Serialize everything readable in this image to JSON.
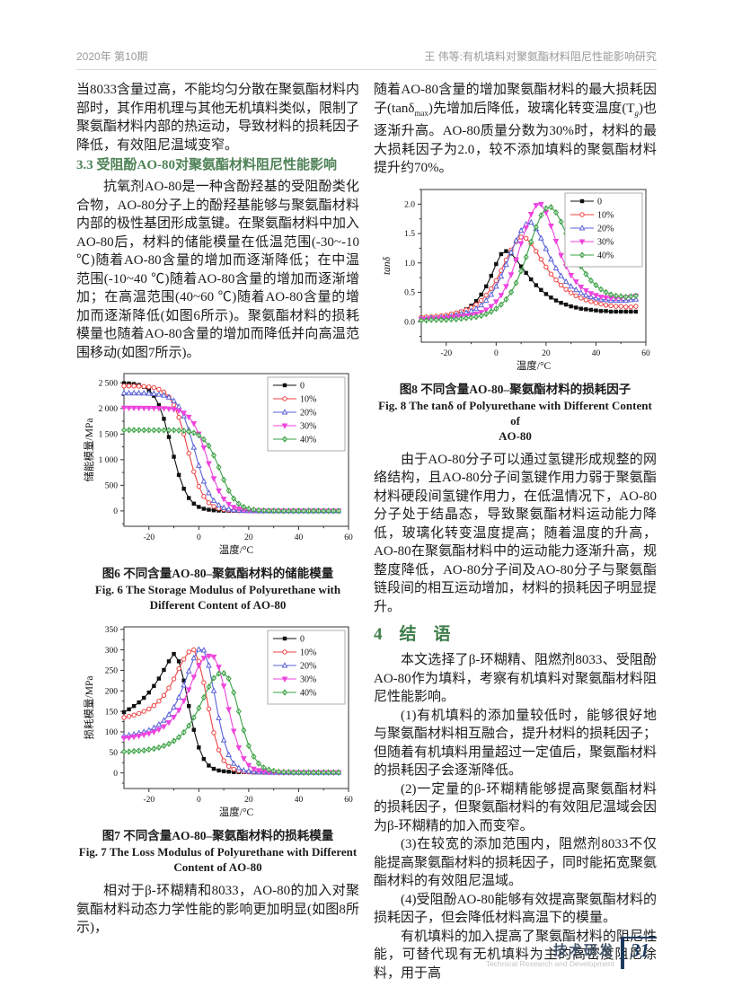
{
  "page": {
    "header_left": "2020年 第10期",
    "header_right": "王    伟等:有机填料对聚氨酯材料阻尼性能影响研究",
    "footer": {
      "cn": "技术研发",
      "en": "Technical Research and Development",
      "page_number": "31"
    }
  },
  "left_column": {
    "para1": "当8033含量过高，不能均匀分散在聚氨酯材料内部时，其作用机理与其他无机填料类似，限制了聚氨酯材料内部的热运动，导致材料的损耗因子降低，有效阻尼温域变窄。",
    "heading_33": "3.3  受阻酚AO-80对聚氨酯材料阻尼性能影响",
    "para2": "抗氧剂AO-80是一种含酚羟基的受阻酚类化合物，AO-80分子上的酚羟基能够与聚氨酯材料内部的极性基团形成氢键。在聚氨酯材料中加入AO-80后，材料的储能模量在低温范围(-30~-10 ℃)随着AO-80含量的增加而逐渐降低；在中温范围(-10~40 ℃)随着AO-80含量的增加而逐渐增加；在高温范围(40~60 ℃)随着AO-80含量的增加而逐渐降低(如图6所示)。聚氨酯材料的损耗模量也随着AO-80含量的增加而降低并向高温范围移动(如图7所示)。",
    "para3": "相对于β-环糊精和8033，AO-80的加入对聚氨酯材料动态力学性能的影响更加明显(如图8所示)，"
  },
  "right_column": {
    "para1": {
      "seg0": "随着AO-80含量的增加聚氨酯材料的最大损耗因子(tanδ",
      "seg1": "max",
      "seg2": ")先增加后降低，玻璃化转变温度(T",
      "seg3": "g",
      "seg4": ")也逐渐升高。AO-80质量分数为30%时，材料的最大损耗因子为2.0，较不添加填料的聚氨酯材料提升约70%。"
    },
    "para2": "由于AO-80分子可以通过氢键形成规整的网络结构，且AO-80分子间氢键作用力弱于聚氨酯材料硬段间氢键作用力，在低温情况下，AO-80分子处于结晶态，导致聚氨酯材料运动能力降低，玻璃化转变温度提高；随着温度的升高，AO-80在聚氨酯材料中的运动能力逐渐升高，规整度降低，AO-80分子间及AO-80分子与聚氨酯链段间的相互运动增加，材料的损耗因子明显提升。",
    "heading_4": "4　结　语",
    "conclusion": {
      "intro": "本文选择了β-环糊精、阻燃剂8033、受阻酚AO-80作为填料，考察有机填料对聚氨酯材料阻尼性能影响。",
      "c1": "(1)有机填料的添加量较低时，能够很好地与聚氨酯材料相互融合，提升材料的损耗因子；但随着有机填料用量超过一定值后，聚氨酯材料的损耗因子会逐渐降低。",
      "c2": "(2)一定量的β-环糊精能够提高聚氨酯材料的损耗因子，但聚氨酯材料的有效阻尼温域会因为β-环糊精的加入而变窄。",
      "c3": "(3)在较宽的添加范围内，阻燃剂8033不仅能提高聚氨酯材料的损耗因子，同时能拓宽聚氨酯材料的有效阻尼温域。",
      "c4": "(4)受阻酚AO-80能够有效提高聚氨酯材料的损耗因子，但会降低材料高温下的模量。",
      "final": "有机填料的加入提高了聚氨酯材料的阻尼性能，可替代现有无机填料为主的高密度阻尼涂料，用于高"
    }
  },
  "figures": {
    "fig6": {
      "caption_cn": "图6  不同含量AO-80–聚氨酯材料的储能模量",
      "caption_en_1": "Fig. 6  The Storage Modulus of Polyurethane with",
      "caption_en_2": "Different Content of AO-80"
    },
    "fig7": {
      "caption_cn": "图7  不同含量AO-80–聚氨酯材料的损耗模量",
      "caption_en_1": "Fig. 7  The Loss Modulus of Polyurethane with Different",
      "caption_en_2": "Content of AO-80"
    },
    "fig8": {
      "caption_cn": "图8  不同含量AO-80–聚氨酯材料的损耗因子",
      "caption_en_1": "Fig. 8  The tanδ of Polyurethane with Different Content of",
      "caption_en_2": "AO-80"
    }
  },
  "chart_data": [
    {
      "type": "line",
      "title": "图6 不同含量AO-80–聚氨酯材料的储能模量",
      "xlabel": "温度/°C",
      "ylabel": "储能模量/MPa",
      "ylabel_italic": false,
      "xlim": [
        -30,
        60
      ],
      "ylim": [
        -300,
        2680
      ],
      "xticks": [
        -20,
        0,
        20,
        40,
        60
      ],
      "xtick_labels": [
        "-20",
        "0",
        "20",
        "40",
        "60"
      ],
      "yticks": [
        0,
        500,
        1000,
        1500,
        2000,
        2500
      ],
      "ytick_labels": [
        "0",
        "500",
        "1 000",
        "1 500",
        "2 000",
        "2 500"
      ],
      "legend_position": "top-right",
      "x": [
        -30,
        -28,
        -26,
        -24,
        -22,
        -20,
        -18,
        -16,
        -14,
        -12,
        -10,
        -8,
        -6,
        -4,
        -2,
        0,
        2,
        4,
        6,
        8,
        10,
        12,
        14,
        16,
        18,
        20,
        22,
        24,
        26,
        28,
        30,
        32,
        34,
        36,
        38,
        40,
        42,
        44,
        46,
        48,
        50,
        52,
        54,
        56
      ],
      "series": [
        {
          "name": "0",
          "color": "#111111",
          "marker": "square",
          "values": [
            2493,
            2488,
            2477,
            2458,
            2422,
            2358,
            2248,
            2066,
            1797,
            1443,
            1057,
            703,
            433,
            252,
            142,
            78,
            42,
            23,
            12,
            7,
            4,
            2,
            1,
            1,
            1,
            1,
            0,
            0,
            0,
            0,
            0,
            0,
            0,
            0,
            0,
            0,
            0,
            0,
            0,
            0,
            0,
            0,
            0,
            0
          ]
        },
        {
          "name": "10%",
          "color": "#ee4040",
          "marker": "circle",
          "values": [
            2439,
            2438,
            2437,
            2434,
            2430,
            2421,
            2405,
            2374,
            2321,
            2226,
            2070,
            1826,
            1501,
            1124,
            767,
            478,
            283,
            159,
            88,
            48,
            26,
            14,
            8,
            4,
            2,
            1,
            1,
            0,
            0,
            0,
            0,
            0,
            0,
            0,
            0,
            0,
            0,
            0,
            0,
            0,
            0,
            0,
            0,
            0
          ]
        },
        {
          "name": "20%",
          "color": "#5b62d8",
          "marker": "triangle",
          "values": [
            2300,
            2299,
            2299,
            2298,
            2296,
            2293,
            2287,
            2275,
            2255,
            2217,
            2150,
            2034,
            1849,
            1578,
            1240,
            885,
            577,
            350,
            202,
            112,
            61,
            33,
            18,
            10,
            5,
            3,
            2,
            1,
            0,
            0,
            0,
            0,
            0,
            0,
            0,
            0,
            0,
            0,
            0,
            0,
            0,
            0,
            0,
            0
          ]
        },
        {
          "name": "30%",
          "color": "#ee44dd",
          "marker": "triangle-down",
          "values": [
            2010,
            2010,
            2009,
            2009,
            2008,
            2007,
            2006,
            2004,
            2001,
            1994,
            1981,
            1956,
            1912,
            1833,
            1705,
            1504,
            1237,
            926,
            632,
            394,
            233,
            131,
            73,
            40,
            22,
            12,
            6,
            3,
            2,
            1,
            0,
            0,
            0,
            0,
            0,
            0,
            0,
            0,
            0,
            0,
            0,
            0,
            0,
            0
          ]
        },
        {
          "name": "40%",
          "color": "#3aa044",
          "marker": "diamond",
          "values": [
            1578,
            1578,
            1578,
            1577,
            1577,
            1576,
            1576,
            1575,
            1575,
            1575,
            1575,
            1571,
            1563,
            1549,
            1523,
            1477,
            1397,
            1270,
            1084,
            852,
            608,
            396,
            240,
            139,
            77,
            42,
            23,
            12,
            7,
            4,
            2,
            1,
            0,
            0,
            0,
            0,
            0,
            0,
            0,
            0,
            0,
            0,
            0,
            0
          ]
        }
      ]
    },
    {
      "type": "line",
      "title": "图7 不同含量AO-80–聚氨酯材料的损耗模量",
      "xlabel": "温度/°C",
      "ylabel": "损耗模量/MPa",
      "ylabel_italic": false,
      "xlim": [
        -30,
        60
      ],
      "ylim": [
        -38,
        356
      ],
      "xticks": [
        -20,
        0,
        20,
        40,
        60
      ],
      "xtick_labels": [
        "-20",
        "0",
        "20",
        "40",
        "60"
      ],
      "yticks": [
        0,
        50,
        100,
        150,
        200,
        250,
        300,
        350
      ],
      "ytick_labels": [
        "0",
        "50",
        "100",
        "150",
        "200",
        "250",
        "300",
        "350"
      ],
      "legend_position": "top-right",
      "x": [
        -30,
        -28,
        -26,
        -24,
        -22,
        -20,
        -18,
        -16,
        -14,
        -12,
        -10,
        -8,
        -6,
        -4,
        -2,
        0,
        2,
        4,
        6,
        8,
        10,
        12,
        14,
        16,
        18,
        20,
        22,
        24,
        26,
        28,
        30,
        32,
        34,
        36,
        38,
        40,
        42,
        44,
        46,
        48,
        50,
        52,
        54,
        56
      ],
      "series": [
        {
          "name": "0",
          "color": "#111111",
          "marker": "square",
          "values": [
            148,
            155,
            163,
            172,
            183,
            196,
            212,
            230,
            251,
            272,
            290,
            272,
            225,
            163,
            105,
            62,
            34,
            18,
            10,
            6,
            4,
            3,
            2,
            2,
            2,
            2,
            1,
            1,
            1,
            1,
            1,
            1,
            1,
            1,
            1,
            1,
            1,
            1,
            1,
            1,
            1,
            1,
            1,
            1
          ]
        },
        {
          "name": "10%",
          "color": "#ee4040",
          "marker": "circle",
          "values": [
            135,
            138,
            141,
            145,
            150,
            156,
            164,
            175,
            189,
            207,
            229,
            254,
            277,
            295,
            300,
            272,
            220,
            156,
            98,
            56,
            30,
            16,
            9,
            5,
            3,
            2,
            2,
            2,
            1,
            1,
            1,
            1,
            1,
            1,
            1,
            1,
            1,
            1,
            1,
            1,
            1,
            1,
            1,
            1
          ]
        },
        {
          "name": "20%",
          "color": "#5b62d8",
          "marker": "triangle",
          "values": [
            90,
            92,
            94,
            97,
            100,
            104,
            110,
            118,
            128,
            142,
            160,
            184,
            214,
            248,
            280,
            301,
            299,
            262,
            200,
            134,
            80,
            44,
            23,
            12,
            6,
            4,
            3,
            2,
            2,
            1,
            1,
            1,
            1,
            1,
            1,
            1,
            1,
            1,
            1,
            1,
            1,
            1,
            1,
            1
          ]
        },
        {
          "name": "30%",
          "color": "#ee44dd",
          "marker": "triangle-down",
          "values": [
            85,
            86,
            88,
            90,
            93,
            96,
            100,
            106,
            113,
            123,
            136,
            153,
            176,
            203,
            234,
            262,
            280,
            285,
            283,
            258,
            212,
            155,
            102,
            62,
            35,
            19,
            10,
            6,
            4,
            2,
            2,
            1,
            1,
            1,
            1,
            1,
            1,
            1,
            1,
            1,
            1,
            1,
            1,
            1
          ]
        },
        {
          "name": "40%",
          "color": "#3aa044",
          "marker": "diamond",
          "values": [
            52,
            52,
            53,
            54,
            55,
            57,
            59,
            62,
            66,
            71,
            78,
            87,
            99,
            115,
            135,
            158,
            184,
            210,
            231,
            242,
            243,
            230,
            196,
            150,
            104,
            66,
            40,
            23,
            13,
            8,
            5,
            3,
            2,
            2,
            1,
            1,
            1,
            1,
            1,
            1,
            1,
            1,
            1,
            1
          ]
        }
      ]
    },
    {
      "type": "line",
      "title": "图8 不同含量AO-80–聚氨酯材料的损耗因子",
      "xlabel": "温度/°C",
      "ylabel": "tanδ",
      "ylabel_italic": true,
      "xlim": [
        -30,
        60
      ],
      "ylim": [
        -0.35,
        2.25
      ],
      "xticks": [
        -20,
        0,
        20,
        40,
        60
      ],
      "xtick_labels": [
        "-20",
        "0",
        "20",
        "40",
        "60"
      ],
      "yticks": [
        0,
        0.5,
        1,
        1.5,
        2
      ],
      "ytick_labels": [
        "0.0",
        "0.5",
        "1.0",
        "1.5",
        "2.0"
      ],
      "legend_position": "top-right",
      "x": [
        -30,
        -28,
        -26,
        -24,
        -22,
        -20,
        -18,
        -16,
        -14,
        -12,
        -10,
        -8,
        -6,
        -4,
        -2,
        0,
        2,
        4,
        6,
        8,
        10,
        12,
        14,
        16,
        18,
        20,
        22,
        24,
        26,
        28,
        30,
        32,
        34,
        36,
        38,
        40,
        42,
        44,
        46,
        48,
        50,
        52,
        54,
        56
      ],
      "series": [
        {
          "name": "0",
          "color": "#111111",
          "marker": "square",
          "values": [
            0.07,
            0.07,
            0.08,
            0.08,
            0.09,
            0.1,
            0.12,
            0.14,
            0.17,
            0.21,
            0.27,
            0.35,
            0.46,
            0.6,
            0.78,
            0.98,
            1.15,
            1.2,
            1.16,
            1.06,
            0.94,
            0.83,
            0.72,
            0.62,
            0.54,
            0.47,
            0.41,
            0.36,
            0.32,
            0.29,
            0.26,
            0.24,
            0.22,
            0.21,
            0.2,
            0.19,
            0.18,
            0.18,
            0.17,
            0.17,
            0.17,
            0.17,
            0.17,
            0.17
          ]
        },
        {
          "name": "10%",
          "color": "#ee4040",
          "marker": "circle",
          "values": [
            0.07,
            0.08,
            0.08,
            0.09,
            0.1,
            0.11,
            0.13,
            0.15,
            0.17,
            0.2,
            0.24,
            0.29,
            0.36,
            0.45,
            0.56,
            0.7,
            0.87,
            1.05,
            1.22,
            1.36,
            1.44,
            1.42,
            1.33,
            1.2,
            1.06,
            0.93,
            0.81,
            0.71,
            0.62,
            0.55,
            0.49,
            0.44,
            0.4,
            0.37,
            0.34,
            0.32,
            0.3,
            0.28,
            0.27,
            0.26,
            0.26,
            0.25,
            0.25,
            0.26
          ]
        },
        {
          "name": "20%",
          "color": "#5b62d8",
          "marker": "triangle",
          "values": [
            0.05,
            0.05,
            0.06,
            0.06,
            0.07,
            0.08,
            0.09,
            0.11,
            0.13,
            0.15,
            0.18,
            0.22,
            0.28,
            0.36,
            0.46,
            0.6,
            0.77,
            0.97,
            1.18,
            1.38,
            1.55,
            1.66,
            1.69,
            1.58,
            1.42,
            1.24,
            1.06,
            0.91,
            0.78,
            0.68,
            0.6,
            0.54,
            0.49,
            0.45,
            0.42,
            0.4,
            0.38,
            0.37,
            0.36,
            0.36,
            0.36,
            0.36,
            0.37,
            0.38
          ]
        },
        {
          "name": "30%",
          "color": "#ee44dd",
          "marker": "triangle-down",
          "values": [
            0.04,
            0.04,
            0.05,
            0.05,
            0.06,
            0.06,
            0.07,
            0.08,
            0.09,
            0.1,
            0.11,
            0.13,
            0.16,
            0.2,
            0.26,
            0.34,
            0.45,
            0.6,
            0.8,
            1.05,
            1.33,
            1.6,
            1.83,
            1.98,
            2.0,
            1.86,
            1.63,
            1.37,
            1.13,
            0.94,
            0.79,
            0.68,
            0.59,
            0.53,
            0.48,
            0.45,
            0.42,
            0.41,
            0.4,
            0.4,
            0.4,
            0.41,
            0.42,
            0.44
          ]
        },
        {
          "name": "40%",
          "color": "#3aa044",
          "marker": "diamond",
          "values": [
            0.02,
            0.02,
            0.03,
            0.03,
            0.03,
            0.03,
            0.04,
            0.04,
            0.05,
            0.06,
            0.07,
            0.08,
            0.1,
            0.13,
            0.17,
            0.22,
            0.29,
            0.38,
            0.5,
            0.66,
            0.86,
            1.1,
            1.36,
            1.61,
            1.81,
            1.93,
            1.95,
            1.86,
            1.7,
            1.5,
            1.29,
            1.1,
            0.94,
            0.81,
            0.7,
            0.62,
            0.55,
            0.5,
            0.46,
            0.44,
            0.43,
            0.42,
            0.43,
            0.44
          ]
        }
      ]
    }
  ]
}
